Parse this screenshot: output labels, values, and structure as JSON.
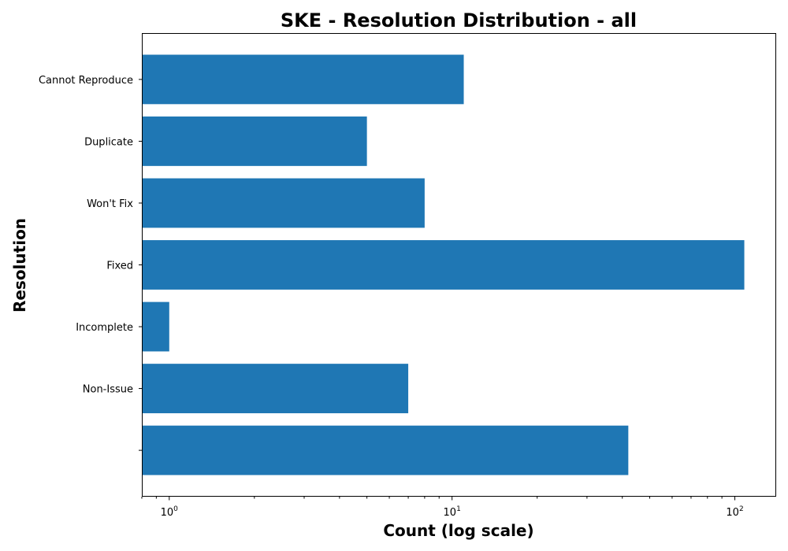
{
  "chart_data": {
    "type": "bar",
    "orientation": "horizontal",
    "title": "SKE - Resolution Distribution - all",
    "xlabel": "Count (log scale)",
    "ylabel": "Resolution",
    "xscale": "log",
    "xlim": [
      0.8,
      140
    ],
    "x_ticks": [
      {
        "value": 1,
        "base": "10",
        "exp": "0"
      },
      {
        "value": 10,
        "base": "10",
        "exp": "1"
      },
      {
        "value": 100,
        "base": "10",
        "exp": "2"
      }
    ],
    "categories": [
      "Cannot Reproduce",
      "Duplicate",
      "Won't Fix",
      "Fixed",
      "Incomplete",
      "Non-Issue",
      ""
    ],
    "values": [
      11,
      5,
      8,
      108,
      1,
      7,
      42
    ],
    "grid": false,
    "bar_color": "#1f77b4"
  }
}
